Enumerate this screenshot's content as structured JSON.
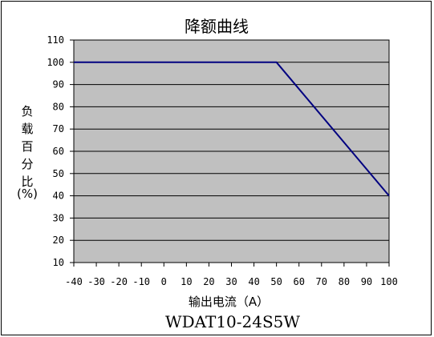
{
  "chart_data": {
    "type": "line",
    "title": "降额曲线",
    "xlabel": "输出电流（A）",
    "ylabel_chars": [
      "负",
      "载",
      "百",
      "分",
      "比",
      "(%)"
    ],
    "model": "WDAT10-24S5W",
    "xlim": [
      -40,
      100
    ],
    "ylim": [
      10,
      110
    ],
    "x_ticks": [
      "-40",
      "-30",
      "-20",
      "-10",
      "0",
      "10",
      "20",
      "30",
      "40",
      "50",
      "60",
      "70",
      "80",
      "90",
      "100"
    ],
    "y_ticks": [
      "110",
      "100",
      "90",
      "80",
      "70",
      "60",
      "50",
      "40",
      "30",
      "20",
      "10"
    ],
    "grid": true,
    "series": [
      {
        "x": [
          -40,
          50,
          100
        ],
        "y": [
          100,
          100,
          40
        ]
      }
    ],
    "colors": {
      "plot_bg": "#c0c0c0",
      "line": "#000080",
      "grid": "#000000"
    }
  }
}
